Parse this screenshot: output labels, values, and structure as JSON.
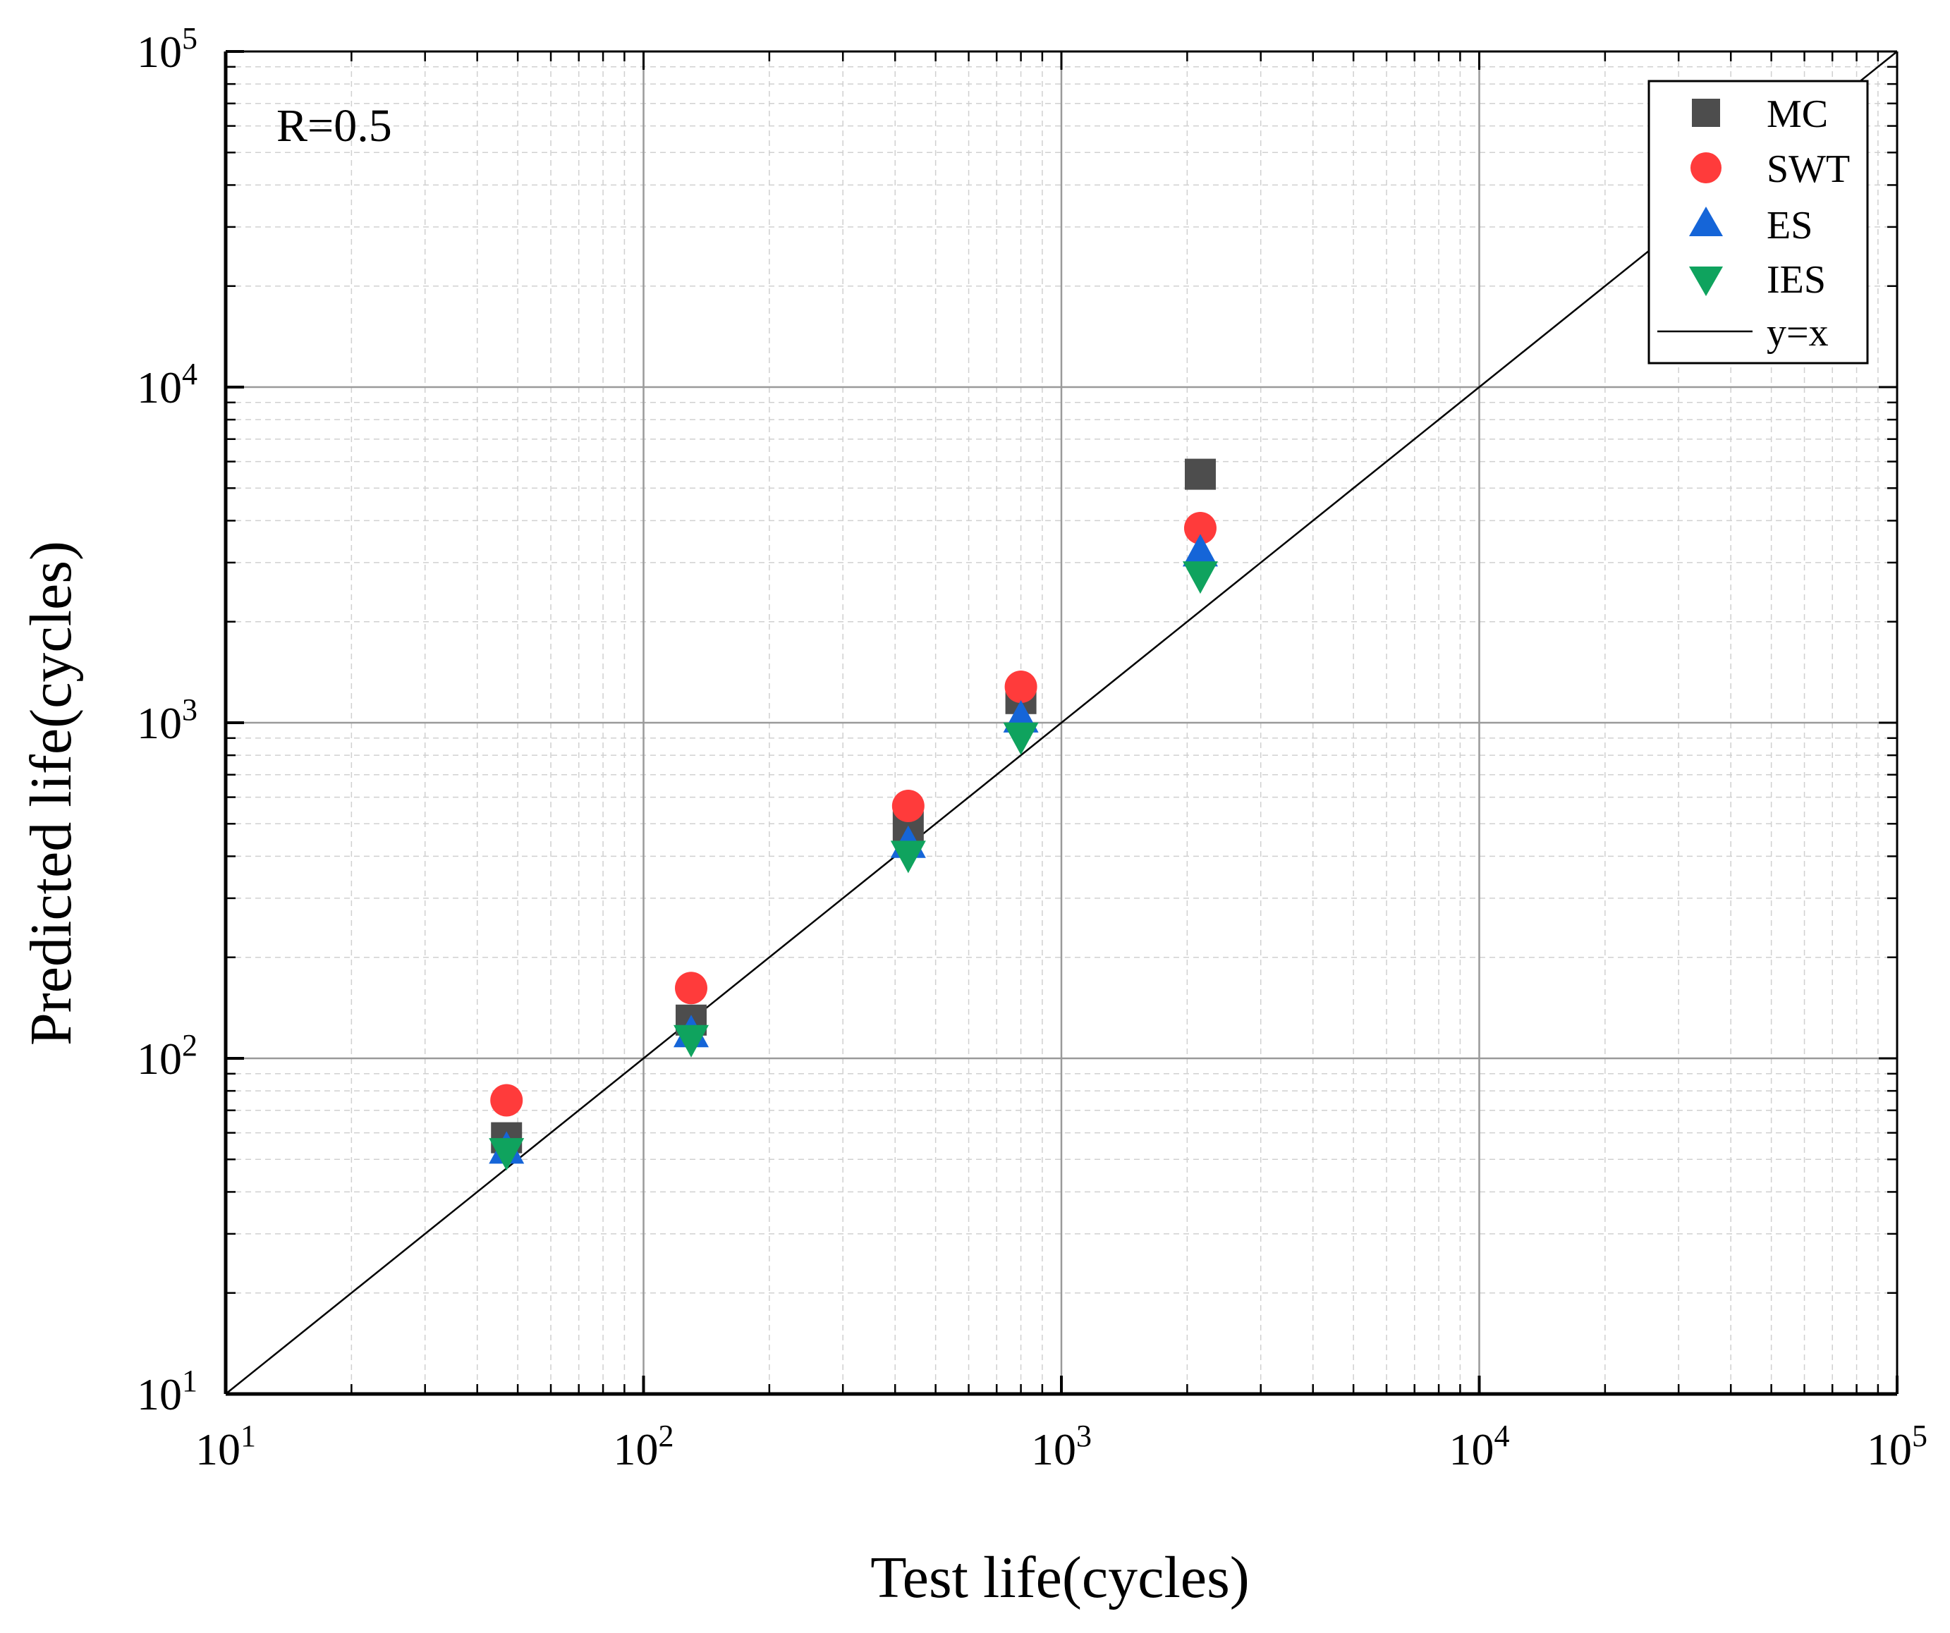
{
  "chart_data": {
    "type": "scatter",
    "title": "",
    "xlabel": "Test life(cycles)",
    "ylabel": "Predicted life(cycles)",
    "xscale": "log",
    "yscale": "log",
    "xlim": [
      10,
      100000
    ],
    "ylim": [
      10,
      100000
    ],
    "xtick_labels": [
      {
        "value": 10,
        "base": "10",
        "exp": "1"
      },
      {
        "value": 100,
        "base": "10",
        "exp": "2"
      },
      {
        "value": 1000,
        "base": "10",
        "exp": "3"
      },
      {
        "value": 10000,
        "base": "10",
        "exp": "4"
      },
      {
        "value": 100000,
        "base": "10",
        "exp": "5"
      }
    ],
    "ytick_labels": [
      {
        "value": 10,
        "base": "10",
        "exp": "1"
      },
      {
        "value": 100,
        "base": "10",
        "exp": "2"
      },
      {
        "value": 1000,
        "base": "10",
        "exp": "3"
      },
      {
        "value": 10000,
        "base": "10",
        "exp": "4"
      },
      {
        "value": 100000,
        "base": "10",
        "exp": "5"
      }
    ],
    "grid": true,
    "annotation": "R=0.5",
    "legend_position": "top-right",
    "x": [
      47,
      130,
      430,
      800,
      2150
    ],
    "series": [
      {
        "name": "MC",
        "marker": "square",
        "color": "#4d4d4d",
        "values": [
          58,
          130,
          490,
          1180,
          5500
        ]
      },
      {
        "name": "SWT",
        "marker": "circle",
        "color": "#ff3b3b",
        "values": [
          75,
          162,
          565,
          1280,
          3800
        ]
      },
      {
        "name": "ES",
        "marker": "triangle-up",
        "color": "#1565d8",
        "values": [
          54,
          120,
          440,
          1040,
          3250
        ]
      },
      {
        "name": "IES",
        "marker": "triangle-down",
        "color": "#0fa35e",
        "values": [
          52,
          113,
          400,
          900,
          2720
        ]
      }
    ],
    "reference_line": {
      "name": "y=x",
      "color": "#000000",
      "x": [
        10,
        100000
      ],
      "y": [
        10,
        100000
      ]
    }
  }
}
